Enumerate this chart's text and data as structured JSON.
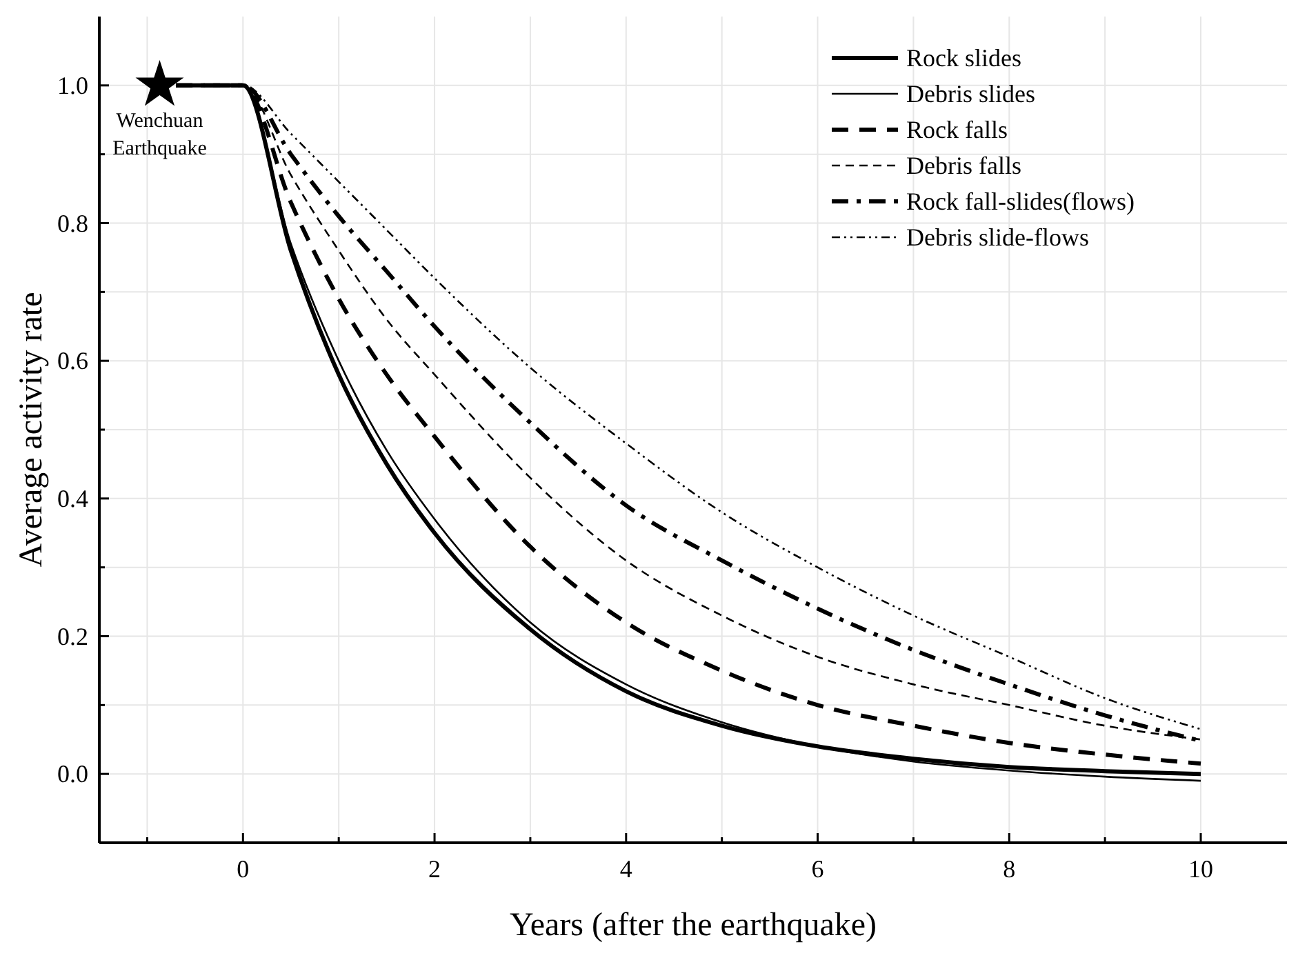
{
  "chart_data": {
    "type": "line",
    "xlabel": "Years (after the earthquake)",
    "ylabel": "Average activity rate",
    "xlim": [
      -1.5,
      10.9
    ],
    "ylim": [
      -0.1,
      1.1
    ],
    "xticks": [
      {
        "value": -1,
        "label": null
      },
      0,
      {
        "value": 1,
        "label": null
      },
      2,
      {
        "value": 3,
        "label": null
      },
      4,
      {
        "value": 5,
        "label": null
      },
      6,
      {
        "value": 7,
        "label": null
      },
      8,
      {
        "value": 9,
        "label": null
      },
      10
    ],
    "yticks": [
      {
        "value": 0,
        "label": "0.0"
      },
      {
        "value": 0.1,
        "label": null
      },
      0.2,
      {
        "value": 0.3,
        "label": null
      },
      0.4,
      {
        "value": 0.5,
        "label": null
      },
      0.6,
      {
        "value": 0.7,
        "label": null
      },
      0.8,
      {
        "value": 0.9,
        "label": null
      },
      {
        "value": 1,
        "label": "1.0"
      }
    ],
    "grid": true,
    "legend": "top right",
    "x": [
      -0.7,
      0,
      0.5,
      1,
      1.5,
      2,
      3,
      4,
      5,
      6,
      7,
      8,
      9,
      10
    ],
    "series": [
      {
        "name": "Rock slides",
        "color": "#000000",
        "line_style": "solid",
        "values": [
          1,
          1,
          0.76,
          0.58,
          0.45,
          0.35,
          0.21,
          0.12,
          0.07,
          0.04,
          0.022,
          0.01,
          0.004,
          0.0
        ]
      },
      {
        "name": "Debris slides",
        "color": "#000000",
        "line_style": "solid",
        "values": [
          1,
          1,
          0.77,
          0.6,
          0.47,
          0.37,
          0.22,
          0.13,
          0.075,
          0.04,
          0.018,
          0.005,
          -0.004,
          -0.01
        ]
      },
      {
        "name": "Rock falls",
        "color": "#000000",
        "line_style": "dashed",
        "values": [
          1,
          1,
          0.83,
          0.69,
          0.58,
          0.49,
          0.33,
          0.22,
          0.15,
          0.1,
          0.07,
          0.045,
          0.028,
          0.015
        ]
      },
      {
        "name": "Debris falls",
        "color": "#000000",
        "line_style": "dashed",
        "values": [
          1,
          1,
          0.87,
          0.76,
          0.66,
          0.58,
          0.43,
          0.31,
          0.23,
          0.17,
          0.13,
          0.1,
          0.07,
          0.05
        ]
      },
      {
        "name": "Rock fall-slides(flows)",
        "color": "#000000",
        "line_style": "dashdot",
        "values": [
          1,
          1,
          0.9,
          0.81,
          0.73,
          0.65,
          0.51,
          0.39,
          0.31,
          0.24,
          0.18,
          0.13,
          0.085,
          0.048
        ]
      },
      {
        "name": "Debris slide-flows",
        "color": "#000000",
        "line_style": "dashdotdot",
        "values": [
          1,
          1,
          0.93,
          0.86,
          0.79,
          0.72,
          0.59,
          0.48,
          0.38,
          0.3,
          0.23,
          0.17,
          0.11,
          0.065
        ]
      }
    ],
    "annotations": [
      {
        "text": "Wenchuan Earthquake",
        "x": -0.87,
        "y": 1.0
      }
    ]
  }
}
